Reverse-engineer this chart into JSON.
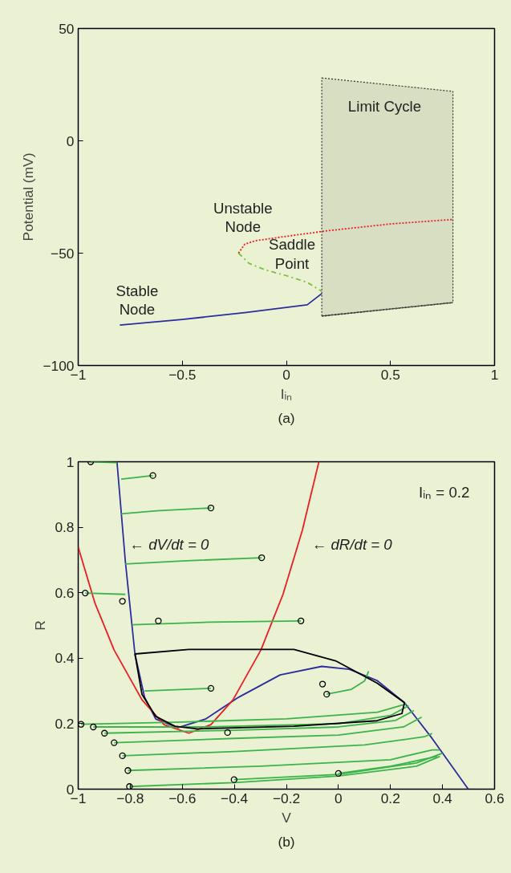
{
  "chart_data": [
    {
      "type": "line",
      "xlabel": "Iᵢₙ",
      "ylabel": "Potential (mV)",
      "xlim": [
        -1,
        1
      ],
      "ylim": [
        -100,
        50
      ],
      "xticks": [
        -1,
        -0.5,
        0,
        0.5,
        1
      ],
      "yticks": [
        -100,
        -50,
        0,
        50
      ],
      "grid": false,
      "series": [
        {
          "color": "#333333",
          "line_style": "dotted",
          "x": [
            0.17,
            0.8
          ],
          "values": [
            -78,
            -72
          ],
          "lower": [
            -78,
            -72
          ],
          "upper": [
            28,
            22
          ]
        },
        {
          "color": "#2b2d9c",
          "line_style": "solid",
          "x": [
            -0.8,
            -0.5,
            -0.2,
            0.1,
            0.17
          ],
          "values": [
            -82,
            -79.5,
            -76.5,
            -73,
            -68
          ]
        },
        {
          "color": "#7ac143",
          "line_style": "dashed",
          "x": [
            -0.23,
            -0.18,
            -0.1,
            0,
            0.1,
            0.17
          ],
          "values": [
            -50,
            -54.5,
            -57.5,
            -60,
            -63,
            -67
          ]
        },
        {
          "color": "#ee1c24",
          "line_style": "dotted",
          "x": [
            -0.23,
            -0.2,
            -0.15,
            0,
            0.2,
            0.5,
            0.8
          ],
          "values": [
            -50,
            -46,
            -44.5,
            -42.5,
            -40,
            -37,
            -35
          ]
        }
      ],
      "annotations": [
        "Stable\nNode",
        "Unstable\nNode",
        "Saddle\nPoint",
        "Limit Cycle",
        "(a)"
      ]
    },
    {
      "type": "line",
      "xlabel": "V",
      "ylabel": "R",
      "xlim": [
        -1,
        0.6
      ],
      "ylim": [
        0,
        1
      ],
      "xticks": [
        -1,
        -0.8,
        -0.6,
        -0.4,
        -0.2,
        0,
        0.2,
        0.4,
        0.6
      ],
      "yticks": [
        0,
        0.2,
        0.4,
        0.6,
        0.8,
        1
      ],
      "grid": false,
      "series": [
        {
          "color": "#2b2d9c",
          "x": [
            -0.851,
            -0.819,
            -0.782,
            -0.745,
            -0.702,
            -0.617,
            -0.511,
            -0.383,
            -0.224,
            -0.064,
            0.042,
            0.148,
            0.254,
            0.361,
            0.499
          ],
          "values": [
            1,
            0.697,
            0.413,
            0.281,
            0.214,
            0.188,
            0.214,
            0.281,
            0.349,
            0.375,
            0.366,
            0.332,
            0.264,
            0.154,
            0
          ]
        },
        {
          "color": "#ee1c24",
          "x": [
            -1,
            -0.936,
            -0.862,
            -0.755,
            -0.67,
            -0.575,
            -0.49,
            -0.405,
            -0.298,
            -0.213,
            -0.139,
            -0.075
          ],
          "values": [
            0.739,
            0.569,
            0.425,
            0.273,
            0.197,
            0.171,
            0.197,
            0.273,
            0.425,
            0.595,
            0.79,
            1
          ]
        },
        {
          "color": "#3cb44a",
          "x": [
            -0.952,
            -0.851
          ],
          "values": [
            1,
            0.997
          ]
        },
        {
          "color": "#3cb44a",
          "x": [
            -0.713,
            -0.8,
            -0.835
          ],
          "values": [
            0.958,
            0.95,
            0.947
          ]
        },
        {
          "color": "#3cb44a",
          "x": [
            -0.49,
            -0.7,
            -0.835
          ],
          "values": [
            0.859,
            0.85,
            0.841
          ]
        },
        {
          "color": "#3cb44a",
          "x": [
            -0.295,
            -0.6,
            -0.819
          ],
          "values": [
            0.707,
            0.697,
            0.688
          ]
        },
        {
          "color": "#3cb44a",
          "x": [
            -0.973,
            -0.819
          ],
          "values": [
            0.599,
            0.595
          ]
        },
        {
          "color": "#3cb44a",
          "x": [
            -0.144,
            -0.5,
            -0.793
          ],
          "values": [
            0.514,
            0.51,
            0.502
          ]
        },
        {
          "color": "#3cb44a",
          "x": [
            -0.49,
            -0.745
          ],
          "values": [
            0.308,
            0.3
          ]
        },
        {
          "color": "#3cb44a",
          "x": [
            -0.045,
            0.05,
            0.1,
            0.116
          ],
          "values": [
            0.29,
            0.305,
            0.33,
            0.36
          ]
        },
        {
          "color": "#3cb44a",
          "x": [
            -0.989,
            -0.6,
            -0.2,
            0.15,
            0.26
          ],
          "values": [
            0.198,
            0.205,
            0.215,
            0.235,
            0.26
          ]
        },
        {
          "color": "#3cb44a",
          "x": [
            -0.942,
            -0.5,
            0,
            0.2,
            0.27
          ],
          "values": [
            0.19,
            0.19,
            0.2,
            0.225,
            0.255
          ]
        },
        {
          "color": "#3cb44a",
          "x": [
            -0.899,
            -0.4,
            0,
            0.22,
            0.29
          ],
          "values": [
            0.171,
            0.18,
            0.19,
            0.21,
            0.24
          ]
        },
        {
          "color": "#3cb44a",
          "x": [
            -0.862,
            -0.4,
            0,
            0.25,
            0.32
          ],
          "values": [
            0.142,
            0.155,
            0.165,
            0.19,
            0.22
          ]
        },
        {
          "color": "#3cb44a",
          "x": [
            -0.83,
            -0.4,
            0.1,
            0.33,
            0.36
          ],
          "values": [
            0.102,
            0.115,
            0.135,
            0.16,
            0.17
          ]
        },
        {
          "color": "#3cb44a",
          "x": [
            -0.809,
            -0.3,
            0.2,
            0.36,
            0.39
          ],
          "values": [
            0.057,
            0.07,
            0.09,
            0.12,
            0.12
          ]
        },
        {
          "color": "#3cb44a",
          "x": [
            -0.803,
            -0.4,
            0,
            0.3,
            0.39
          ],
          "values": [
            0.008,
            0.02,
            0.04,
            0.07,
            0.1
          ]
        },
        {
          "color": "#3cb44a",
          "x": [
            -0.401,
            0,
            0.3,
            0.4
          ],
          "values": [
            0.029,
            0.045,
            0.08,
            0.11
          ]
        },
        {
          "color": "#3cb44a",
          "x": [
            0,
            0.2,
            0.38
          ],
          "values": [
            0.048,
            0.07,
            0.1
          ]
        },
        {
          "color": "#000000",
          "x": [
            -0.782,
            -0.575,
            -0.171,
            -0.011,
            0.148,
            0.254
          ],
          "values": [
            0.413,
            0.427,
            0.427,
            0.392,
            0.324,
            0.264
          ]
        },
        {
          "color": "#000000",
          "x": [
            0.254,
            0.244,
            0.148,
            -0.171,
            -0.543,
            -0.628,
            -0.702,
            -0.755,
            -0.782
          ],
          "values": [
            0.264,
            0.231,
            0.209,
            0.192,
            0.184,
            0.192,
            0.222,
            0.29,
            0.413
          ]
        },
        {
          "type": "scatter",
          "color": "#000000",
          "marker": "circle",
          "x": [
            -0.952,
            -0.713,
            -0.49,
            -0.295,
            -0.973,
            -0.83,
            -0.692,
            -0.144,
            -0.49,
            -0.061,
            -0.045,
            -0.989,
            -0.942,
            -0.899,
            -0.862,
            -0.83,
            -0.809,
            -0.803,
            -0.426,
            -0.401,
            0
          ],
          "values": [
            1,
            0.958,
            0.859,
            0.707,
            0.599,
            0.574,
            0.514,
            0.514,
            0.308,
            0.321,
            0.29,
            0.198,
            0.19,
            0.171,
            0.142,
            0.102,
            0.057,
            0.008,
            0.173,
            0.029,
            0.048
          ]
        }
      ],
      "annotations": [
        "← dV/dt = 0",
        "← dR/dt = 0",
        "Iᵢₙ = 0.2",
        "(b)"
      ]
    }
  ]
}
